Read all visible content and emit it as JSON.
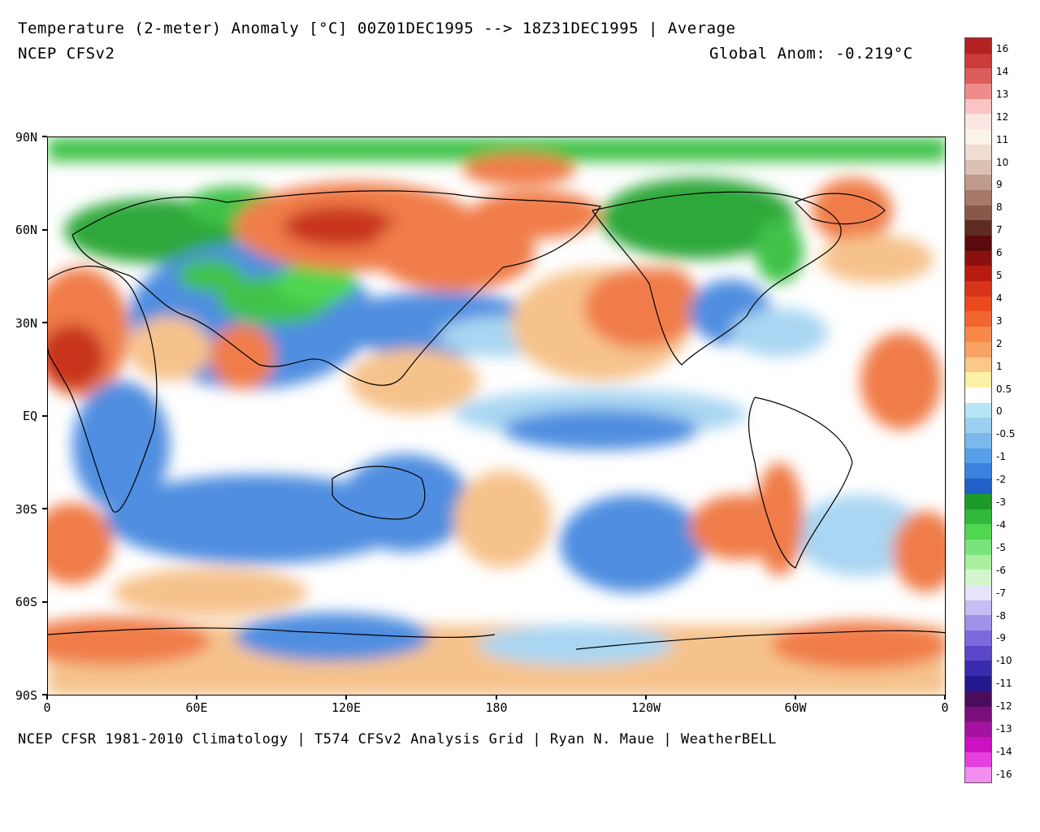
{
  "header": {
    "title": "Temperature (2-meter) Anomaly  [°C] 00Z01DEC1995 --> 18Z31DEC1995 | Average",
    "model": "NCEP CFSv2",
    "global_anom": "Global Anom: -0.219°C"
  },
  "footer": "NCEP CFSR 1981-2010 Climatology | T574 CFSv2 Analysis Grid | Ryan N. Maue | WeatherBELL",
  "map": {
    "lat_labels": [
      "90N",
      "60N",
      "30N",
      "EQ",
      "30S",
      "60S",
      "90S"
    ],
    "lon_labels": [
      "0",
      "60E",
      "120E",
      "180",
      "120W",
      "60W",
      "0"
    ],
    "colors": {
      "strong_warm": "#c8361e",
      "warm": "#f07d4a",
      "mild_warm": "#f6c28c",
      "neutral": "#ffffff",
      "mild_cool": "#a9d6f2",
      "cool": "#4f8ee0",
      "strong_cool": "#2f6ad0",
      "green_cold": "#3fc24a",
      "deep_warm": "#7a1a10"
    }
  },
  "colorbar": {
    "labels": [
      "16",
      "14",
      "13",
      "12",
      "11",
      "10",
      "9",
      "8",
      "7",
      "6",
      "5",
      "4",
      "3",
      "2",
      "1",
      "0.5",
      "0",
      "-0.5",
      "-1",
      "-2",
      "-3",
      "-4",
      "-5",
      "-6",
      "-7",
      "-8",
      "-9",
      "-10",
      "-11",
      "-12",
      "-13",
      "-14",
      "-16"
    ],
    "colors": [
      "#b22222",
      "#cc3a3a",
      "#dd5c5c",
      "#ee8c8c",
      "#fbc4c4",
      "#fde7e2",
      "#fbf3ea",
      "#efddd2",
      "#dcc0b4",
      "#c09a8c",
      "#a57868",
      "#8a5848",
      "#5e2b20",
      "#5a0a0a",
      "#8a1010",
      "#b81c10",
      "#d8341a",
      "#ea4a1e",
      "#f26530",
      "#f7884a",
      "#f9a465",
      "#fbc888",
      "#fdf0a8",
      "#ffffff",
      "#b6e6f6",
      "#9cd0f2",
      "#7ab8ee",
      "#579fe8",
      "#3a82de",
      "#2060c8",
      "#1c9a28",
      "#30b93a",
      "#50d64f",
      "#7ae47c",
      "#a9ef9e",
      "#d4f6cc",
      "#e8e4fa",
      "#c6bdf4",
      "#9f92ea",
      "#7c6adc",
      "#5a48c8",
      "#3a2cae",
      "#24188e",
      "#4a0d5e",
      "#7a0e7a",
      "#a312a0",
      "#cc10c4",
      "#e63fe0",
      "#f28ef0"
    ]
  }
}
